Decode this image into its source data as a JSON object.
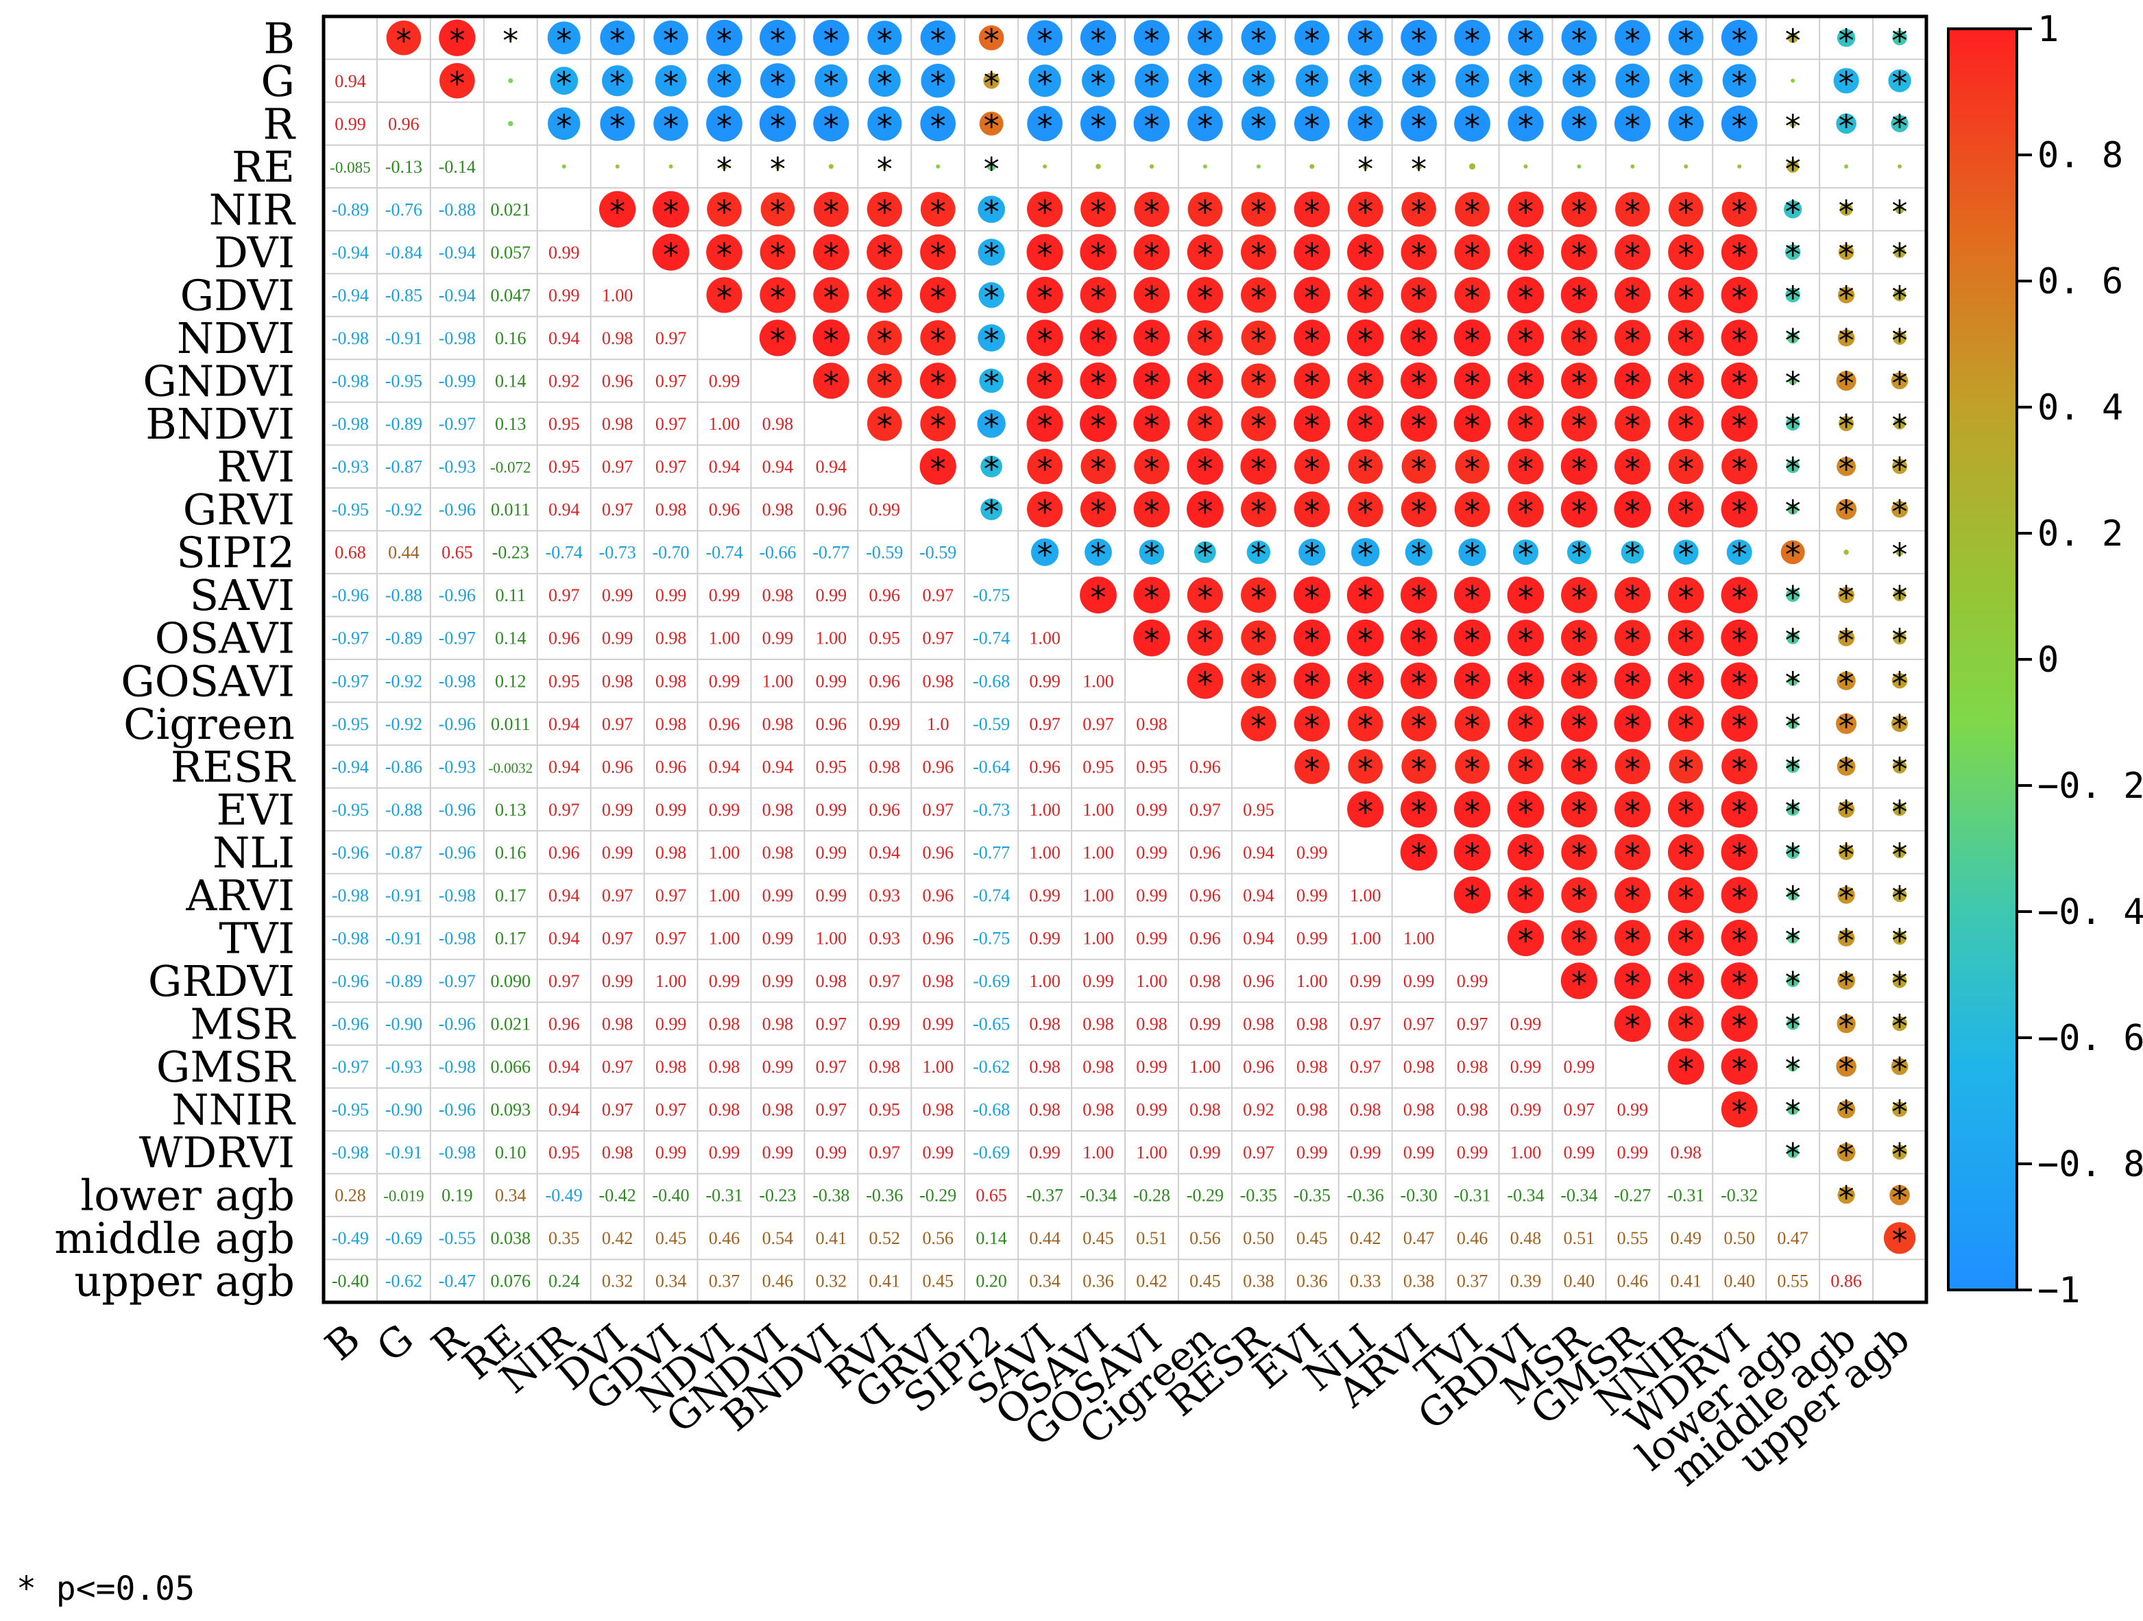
{
  "chart_data": {
    "type": "heatmap",
    "variables": [
      "B",
      "G",
      "R",
      "RE",
      "NIR",
      "DVI",
      "GDVI",
      "NDVI",
      "GNDVI",
      "BNDVI",
      "RVI",
      "GRVI",
      "SIPI2",
      "SAVI",
      "OSAVI",
      "GOSAVI",
      "Cigreen",
      "RESR",
      "EVI",
      "NLI",
      "ARVI",
      "TVI",
      "GRDVI",
      "MSR",
      "GMSR",
      "NNIR",
      "WDRVI",
      "lower agb",
      "middle agb",
      "upper agb"
    ],
    "lower_triangle_labels": [
      [],
      [
        "0.94"
      ],
      [
        "0.99",
        "0.96"
      ],
      [
        "-0.085",
        "-0.13",
        "-0.14"
      ],
      [
        "-0.89",
        "-0.76",
        "-0.88",
        "0.021"
      ],
      [
        "-0.94",
        "-0.84",
        "-0.94",
        "0.057",
        "0.99"
      ],
      [
        "-0.94",
        "-0.85",
        "-0.94",
        "0.047",
        "0.99",
        "1.00"
      ],
      [
        "-0.98",
        "-0.91",
        "-0.98",
        "0.16",
        "0.94",
        "0.98",
        "0.97"
      ],
      [
        "-0.98",
        "-0.95",
        "-0.99",
        "0.14",
        "0.92",
        "0.96",
        "0.97",
        "0.99"
      ],
      [
        "-0.98",
        "-0.89",
        "-0.97",
        "0.13",
        "0.95",
        "0.98",
        "0.97",
        "1.00",
        "0.98"
      ],
      [
        "-0.93",
        "-0.87",
        "-0.93",
        "-0.072",
        "0.95",
        "0.97",
        "0.97",
        "0.94",
        "0.94",
        "0.94"
      ],
      [
        "-0.95",
        "-0.92",
        "-0.96",
        "0.011",
        "0.94",
        "0.97",
        "0.98",
        "0.96",
        "0.98",
        "0.96",
        "0.99"
      ],
      [
        "0.68",
        "0.44",
        "0.65",
        "-0.23",
        "-0.74",
        "-0.73",
        "-0.70",
        "-0.74",
        "-0.66",
        "-0.77",
        "-0.59",
        "-0.59"
      ],
      [
        "-0.96",
        "-0.88",
        "-0.96",
        "0.11",
        "0.97",
        "0.99",
        "0.99",
        "0.99",
        "0.98",
        "0.99",
        "0.96",
        "0.97",
        "-0.75"
      ],
      [
        "-0.97",
        "-0.89",
        "-0.97",
        "0.14",
        "0.96",
        "0.99",
        "0.98",
        "1.00",
        "0.99",
        "1.00",
        "0.95",
        "0.97",
        "-0.74",
        "1.00"
      ],
      [
        "-0.97",
        "-0.92",
        "-0.98",
        "0.12",
        "0.95",
        "0.98",
        "0.98",
        "0.99",
        "1.00",
        "0.99",
        "0.96",
        "0.98",
        "-0.68",
        "0.99",
        "1.00"
      ],
      [
        "-0.95",
        "-0.92",
        "-0.96",
        "0.011",
        "0.94",
        "0.97",
        "0.98",
        "0.96",
        "0.98",
        "0.96",
        "0.99",
        "1.0",
        "-0.59",
        "0.97",
        "0.97",
        "0.98"
      ],
      [
        "-0.94",
        "-0.86",
        "-0.93",
        "-0.0032",
        "0.94",
        "0.96",
        "0.96",
        "0.94",
        "0.94",
        "0.95",
        "0.98",
        "0.96",
        "-0.64",
        "0.96",
        "0.95",
        "0.95",
        "0.96"
      ],
      [
        "-0.95",
        "-0.88",
        "-0.96",
        "0.13",
        "0.97",
        "0.99",
        "0.99",
        "0.99",
        "0.98",
        "0.99",
        "0.96",
        "0.97",
        "-0.73",
        "1.00",
        "1.00",
        "0.99",
        "0.97",
        "0.95"
      ],
      [
        "-0.96",
        "-0.87",
        "-0.96",
        "0.16",
        "0.96",
        "0.99",
        "0.98",
        "1.00",
        "0.98",
        "0.99",
        "0.94",
        "0.96",
        "-0.77",
        "1.00",
        "1.00",
        "0.99",
        "0.96",
        "0.94",
        "0.99"
      ],
      [
        "-0.98",
        "-0.91",
        "-0.98",
        "0.17",
        "0.94",
        "0.97",
        "0.97",
        "1.00",
        "0.99",
        "0.99",
        "0.93",
        "0.96",
        "-0.74",
        "0.99",
        "1.00",
        "0.99",
        "0.96",
        "0.94",
        "0.99",
        "1.00"
      ],
      [
        "-0.98",
        "-0.91",
        "-0.98",
        "0.17",
        "0.94",
        "0.97",
        "0.97",
        "1.00",
        "0.99",
        "1.00",
        "0.93",
        "0.96",
        "-0.75",
        "0.99",
        "1.00",
        "0.99",
        "0.96",
        "0.94",
        "0.99",
        "1.00",
        "1.00"
      ],
      [
        "-0.96",
        "-0.89",
        "-0.97",
        "0.090",
        "0.97",
        "0.99",
        "1.00",
        "0.99",
        "0.99",
        "0.98",
        "0.97",
        "0.98",
        "-0.69",
        "1.00",
        "0.99",
        "1.00",
        "0.98",
        "0.96",
        "1.00",
        "0.99",
        "0.99",
        "0.99"
      ],
      [
        "-0.96",
        "-0.90",
        "-0.96",
        "0.021",
        "0.96",
        "0.98",
        "0.99",
        "0.98",
        "0.98",
        "0.97",
        "0.99",
        "0.99",
        "-0.65",
        "0.98",
        "0.98",
        "0.98",
        "0.99",
        "0.98",
        "0.98",
        "0.97",
        "0.97",
        "0.97",
        "0.99"
      ],
      [
        "-0.97",
        "-0.93",
        "-0.98",
        "0.066",
        "0.94",
        "0.97",
        "0.98",
        "0.98",
        "0.99",
        "0.97",
        "0.98",
        "1.00",
        "-0.62",
        "0.98",
        "0.98",
        "0.99",
        "1.00",
        "0.96",
        "0.98",
        "0.97",
        "0.98",
        "0.98",
        "0.99",
        "0.99"
      ],
      [
        "-0.95",
        "-0.90",
        "-0.96",
        "0.093",
        "0.94",
        "0.97",
        "0.97",
        "0.98",
        "0.98",
        "0.97",
        "0.95",
        "0.98",
        "-0.68",
        "0.98",
        "0.98",
        "0.99",
        "0.98",
        "0.92",
        "0.98",
        "0.98",
        "0.98",
        "0.98",
        "0.99",
        "0.97",
        "0.99"
      ],
      [
        "-0.98",
        "-0.91",
        "-0.98",
        "0.10",
        "0.95",
        "0.98",
        "0.99",
        "0.99",
        "0.99",
        "0.99",
        "0.97",
        "0.99",
        "-0.69",
        "0.99",
        "1.00",
        "1.00",
        "0.99",
        "0.97",
        "0.99",
        "0.99",
        "0.99",
        "0.99",
        "1.00",
        "0.99",
        "0.99",
        "0.98"
      ],
      [
        "0.28",
        "-0.019",
        "0.19",
        "0.34",
        "-0.49",
        "-0.42",
        "-0.40",
        "-0.31",
        "-0.23",
        "-0.38",
        "-0.36",
        "-0.29",
        "0.65",
        "-0.37",
        "-0.34",
        "-0.28",
        "-0.29",
        "-0.35",
        "-0.35",
        "-0.36",
        "-0.30",
        "-0.31",
        "-0.34",
        "-0.34",
        "-0.27",
        "-0.31",
        "-0.32"
      ],
      [
        "-0.49",
        "-0.69",
        "-0.55",
        "0.038",
        "0.35",
        "0.42",
        "0.45",
        "0.46",
        "0.54",
        "0.41",
        "0.52",
        "0.56",
        "0.14",
        "0.44",
        "0.45",
        "0.51",
        "0.56",
        "0.50",
        "0.45",
        "0.42",
        "0.47",
        "0.46",
        "0.48",
        "0.51",
        "0.55",
        "0.49",
        "0.50",
        "0.47"
      ],
      [
        "-0.40",
        "-0.62",
        "-0.47",
        "0.076",
        "0.24",
        "0.32",
        "0.34",
        "0.37",
        "0.46",
        "0.32",
        "0.41",
        "0.45",
        "0.20",
        "0.34",
        "0.36",
        "0.42",
        "0.45",
        "0.38",
        "0.36",
        "0.33",
        "0.38",
        "0.37",
        "0.39",
        "0.40",
        "0.46",
        "0.41",
        "0.40",
        "0.55",
        "0.86"
      ]
    ],
    "upper_triangle_nonsignificant": [
      [
        1,
        3
      ],
      [
        2,
        3
      ],
      [
        3,
        4
      ],
      [
        3,
        5
      ],
      [
        3,
        6
      ],
      [
        3,
        9
      ],
      [
        3,
        11
      ],
      [
        3,
        13
      ],
      [
        3,
        14
      ],
      [
        3,
        15
      ],
      [
        3,
        16
      ],
      [
        3,
        17
      ],
      [
        3,
        18
      ],
      [
        3,
        21
      ],
      [
        3,
        22
      ],
      [
        3,
        23
      ],
      [
        3,
        24
      ],
      [
        3,
        25
      ],
      [
        3,
        26
      ],
      [
        3,
        28
      ],
      [
        3,
        29
      ],
      [
        1,
        27
      ],
      [
        12,
        28
      ]
    ],
    "colorbar": {
      "min": -1,
      "max": 1,
      "ticks": [
        "1",
        "0. 8",
        "0. 6",
        "0. 4",
        "0. 2",
        "0",
        "−0. 2",
        "−0. 4",
        "−0. 6",
        "−0. 8",
        "−1"
      ]
    },
    "colorscale": [
      "#1e90ff",
      "#20b5e8",
      "#3ec8b0",
      "#7fd84a",
      "#95c636",
      "#c0a12a",
      "#e06e1e",
      "#ff2020"
    ],
    "lower_triangle_text_colors": {
      "strong_negative": "#1aa0dc",
      "weak": "#2b8a1e",
      "moderate_positive": "#a0601e",
      "strong_positive": "#e02020"
    },
    "footnote": "* p<=0.05",
    "significance_marker": "*",
    "grid": true
  }
}
